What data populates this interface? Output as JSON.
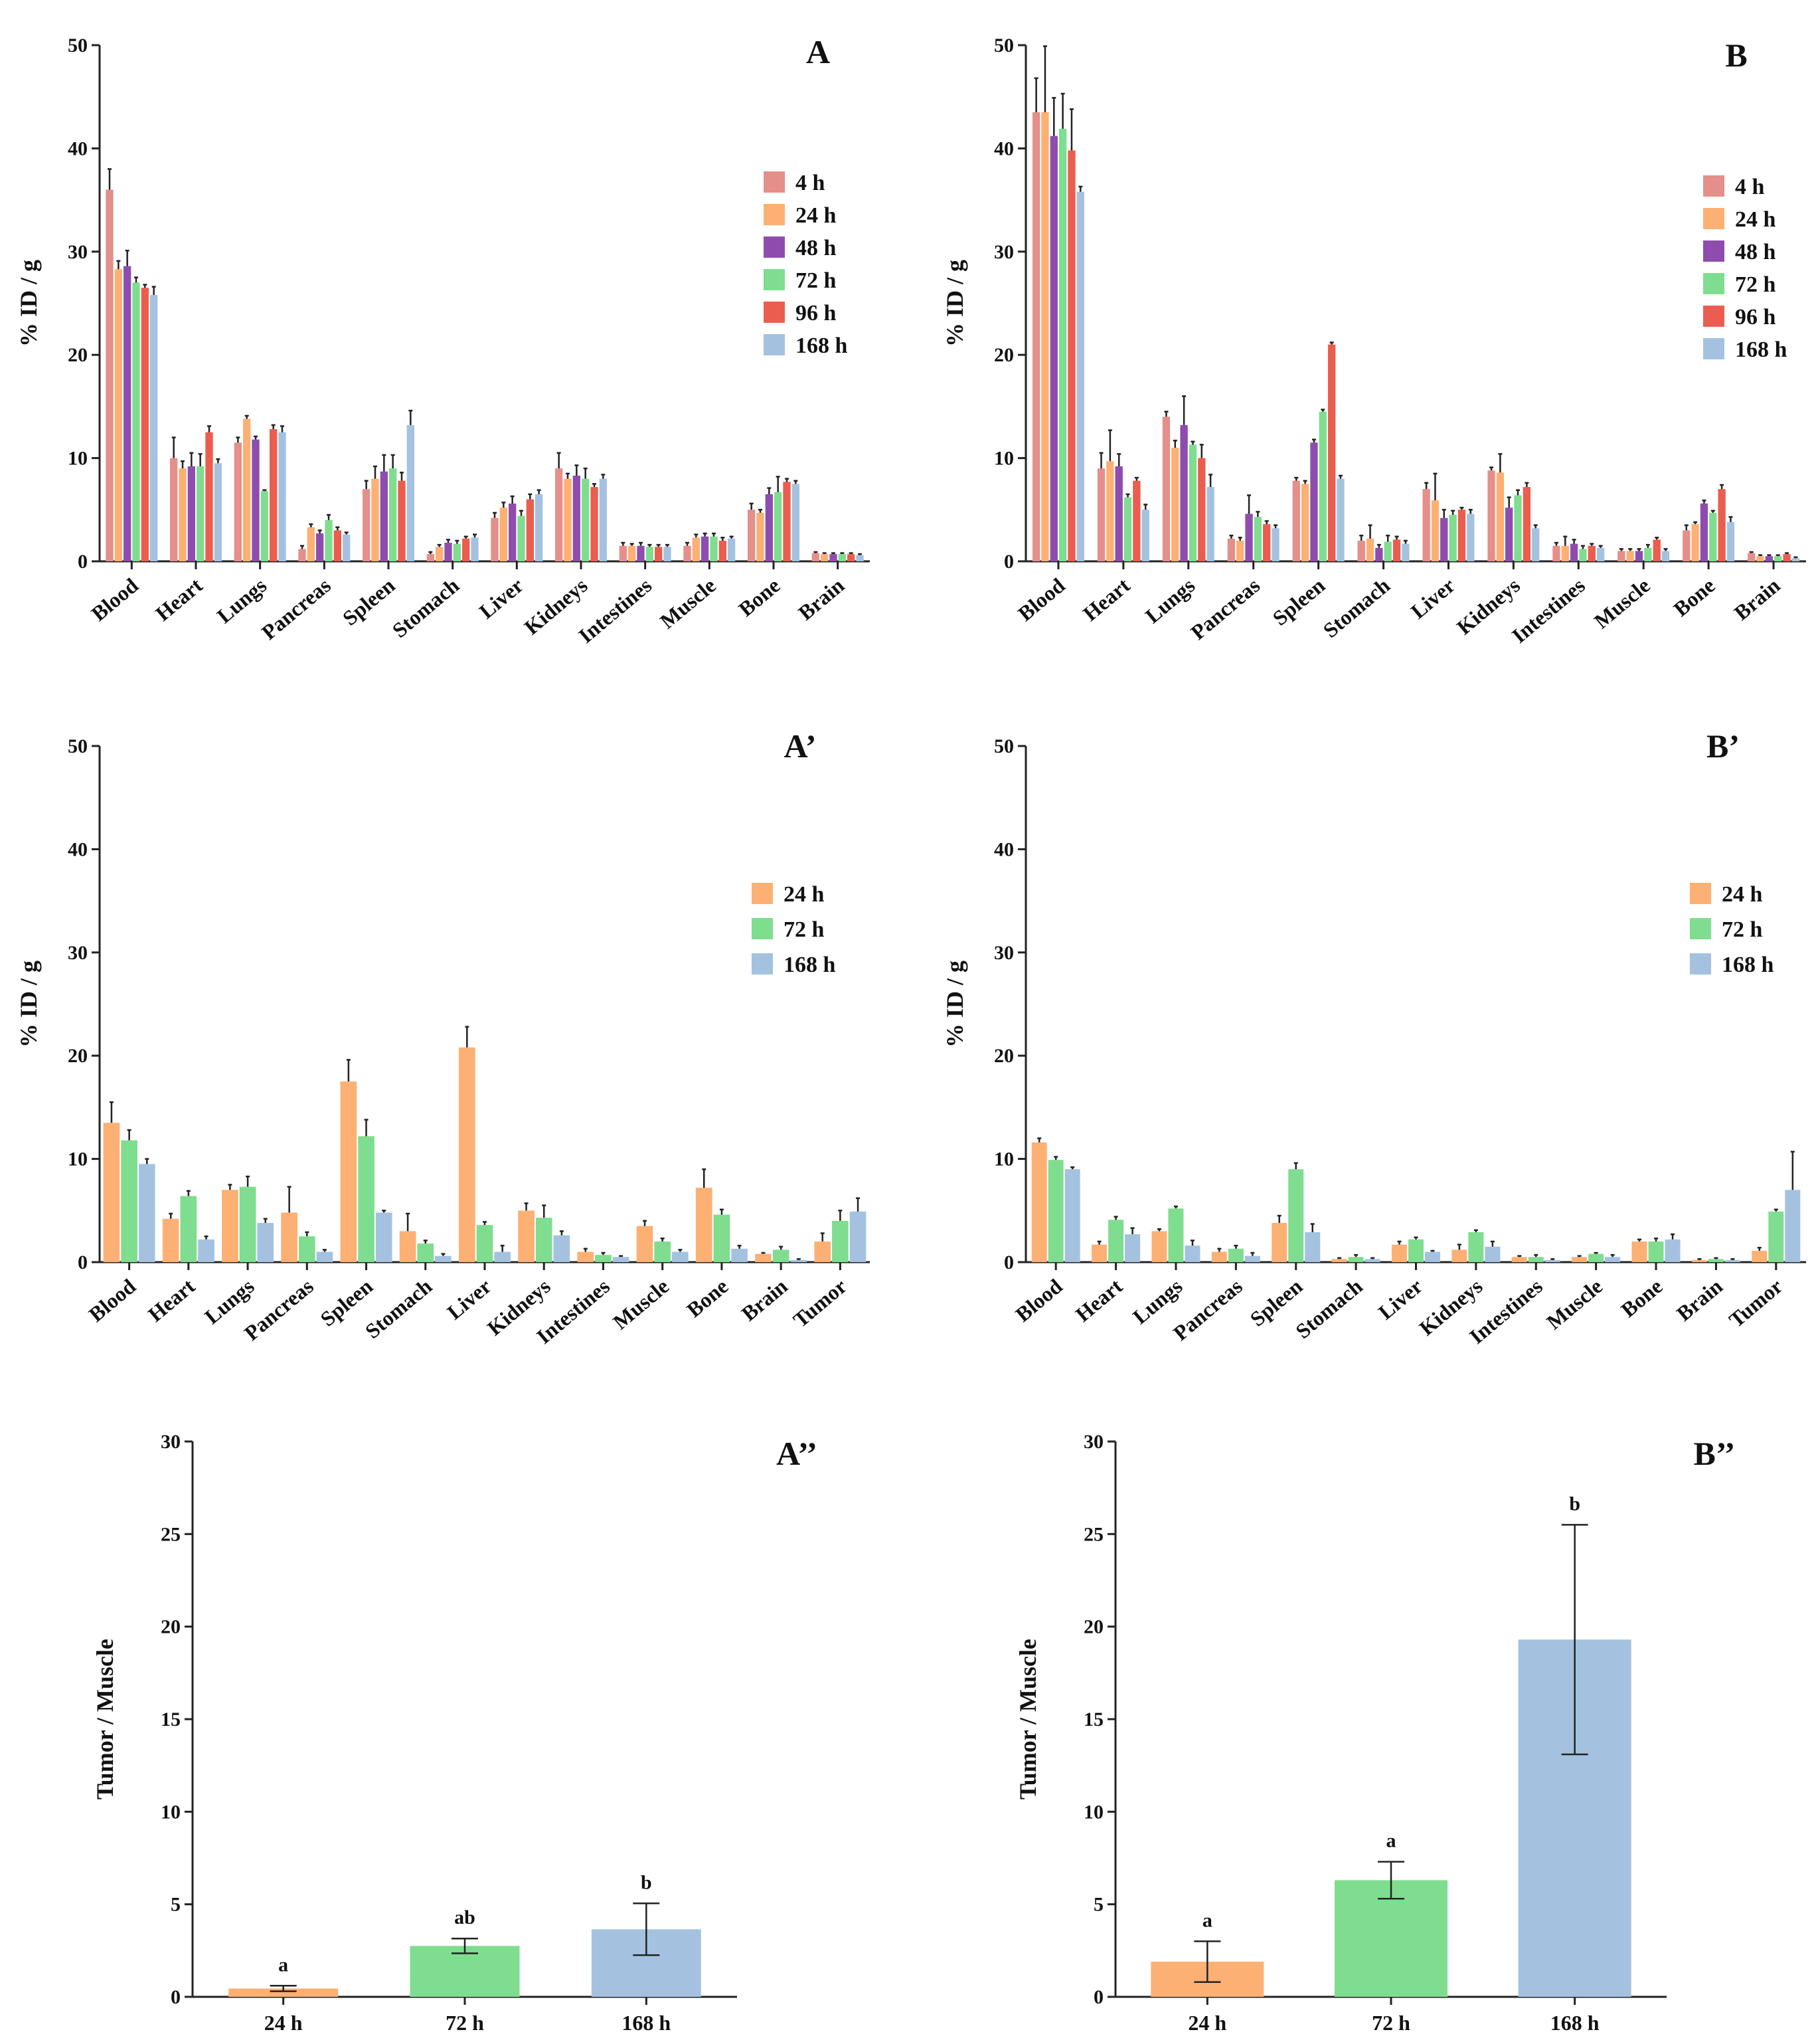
{
  "figure": {
    "colors": {
      "4 h": "#E58F8A",
      "24 h": "#FDB073",
      "48 h": "#8E4DAE",
      "72 h": "#7FDD8F",
      "96 h": "#EB5D4E",
      "168 h": "#A4C2E0"
    }
  },
  "chart_data": [
    {
      "id": "A",
      "label": "A",
      "type": "bar",
      "ylabel": "% ID / g",
      "ylim": [
        0,
        50
      ],
      "yticks": [
        "0",
        "10",
        "20",
        "30",
        "40",
        "50"
      ],
      "categories": [
        "Blood",
        "Heart",
        "Lungs",
        "Pancreas",
        "Spleen",
        "Stomach",
        "Liver",
        "Kidneys",
        "Intestines",
        "Muscle",
        "Bone",
        "Brain"
      ],
      "legend": [
        "4 h",
        "24 h",
        "48 h",
        "72 h",
        "96 h",
        "168 h"
      ],
      "series": [
        {
          "name": "4 h",
          "values": [
            36.0,
            10.0,
            11.5,
            1.2,
            7.0,
            0.7,
            4.2,
            9.0,
            1.5,
            1.5,
            5.0,
            0.8
          ],
          "errors": [
            2.0,
            2.0,
            0.5,
            0.3,
            0.8,
            0.2,
            0.5,
            1.5,
            0.3,
            0.3,
            0.6,
            0.1
          ]
        },
        {
          "name": "24 h",
          "values": [
            28.3,
            9.0,
            13.8,
            3.3,
            8.0,
            1.4,
            5.2,
            8.0,
            1.5,
            2.3,
            4.7,
            0.7
          ],
          "errors": [
            0.8,
            0.7,
            0.3,
            0.3,
            1.2,
            0.2,
            0.5,
            0.5,
            0.2,
            0.3,
            0.3,
            0.1
          ]
        },
        {
          "name": "48 h",
          "values": [
            28.6,
            9.2,
            11.8,
            2.7,
            8.7,
            1.8,
            5.6,
            8.3,
            1.5,
            2.4,
            6.5,
            0.7
          ],
          "errors": [
            1.5,
            1.3,
            0.3,
            0.3,
            1.6,
            0.3,
            0.7,
            1.0,
            0.3,
            0.3,
            0.6,
            0.1
          ]
        },
        {
          "name": "72 h",
          "values": [
            27.0,
            9.2,
            6.8,
            4.0,
            9.0,
            1.7,
            4.4,
            8.0,
            1.4,
            2.4,
            6.7,
            0.7
          ],
          "errors": [
            0.5,
            1.2,
            0.1,
            0.5,
            1.3,
            0.3,
            0.5,
            1.0,
            0.2,
            0.3,
            1.5,
            0.1
          ]
        },
        {
          "name": "96 h",
          "values": [
            26.5,
            12.5,
            12.8,
            3.0,
            7.8,
            2.2,
            6.0,
            7.2,
            1.4,
            2.0,
            7.7,
            0.7
          ],
          "errors": [
            0.3,
            0.6,
            0.4,
            0.3,
            0.8,
            0.2,
            0.5,
            0.3,
            0.2,
            0.3,
            0.3,
            0.1
          ]
        },
        {
          "name": "168 h",
          "values": [
            25.8,
            9.5,
            12.5,
            2.6,
            13.2,
            2.3,
            6.5,
            8.0,
            1.4,
            2.2,
            7.5,
            0.6
          ],
          "errors": [
            0.8,
            0.4,
            0.6,
            0.2,
            1.4,
            0.3,
            0.4,
            0.4,
            0.2,
            0.2,
            0.3,
            0.1
          ]
        }
      ]
    },
    {
      "id": "B",
      "label": "B",
      "type": "bar",
      "ylabel": "% ID / g",
      "ylim": [
        0,
        50
      ],
      "yticks": [
        "0",
        "10",
        "20",
        "30",
        "40",
        "50"
      ],
      "categories": [
        "Blood",
        "Heart",
        "Lungs",
        "Pancreas",
        "Spleen",
        "Stomach",
        "Liver",
        "Kidneys",
        "Intestines",
        "Muscle",
        "Bone",
        "Brain"
      ],
      "legend": [
        "4 h",
        "24 h",
        "48 h",
        "72 h",
        "96 h",
        "168 h"
      ],
      "series": [
        {
          "name": "4 h",
          "values": [
            43.5,
            9.0,
            14.0,
            2.2,
            7.8,
            2.0,
            7.0,
            8.8,
            1.5,
            1.0,
            3.0,
            0.8
          ],
          "errors": [
            3.3,
            1.5,
            0.5,
            0.3,
            0.3,
            0.5,
            0.6,
            0.3,
            0.3,
            0.2,
            0.5,
            0.1
          ]
        },
        {
          "name": "24 h",
          "values": [
            43.5,
            9.7,
            11.0,
            2.0,
            7.5,
            2.2,
            5.9,
            8.6,
            1.5,
            1.0,
            3.6,
            0.5
          ],
          "errors": [
            6.4,
            3.0,
            0.7,
            0.3,
            0.3,
            1.3,
            2.6,
            1.8,
            0.9,
            0.2,
            0.2,
            0.1
          ]
        },
        {
          "name": "48 h",
          "values": [
            41.2,
            9.2,
            13.2,
            4.6,
            11.5,
            1.3,
            4.2,
            5.2,
            1.7,
            1.0,
            5.6,
            0.5
          ],
          "errors": [
            3.7,
            1.2,
            2.8,
            1.8,
            0.3,
            0.3,
            0.8,
            1.0,
            0.4,
            0.2,
            0.3,
            0.1
          ]
        },
        {
          "name": "72 h",
          "values": [
            41.9,
            6.2,
            11.3,
            4.3,
            14.5,
            1.9,
            4.5,
            6.4,
            1.2,
            1.3,
            4.7,
            0.5
          ],
          "errors": [
            3.4,
            0.3,
            0.3,
            0.5,
            0.2,
            0.6,
            0.4,
            0.5,
            0.3,
            0.3,
            0.2,
            0.1
          ]
        },
        {
          "name": "96 h",
          "values": [
            39.8,
            7.8,
            10.0,
            3.6,
            21.0,
            2.1,
            5.0,
            7.2,
            1.5,
            2.1,
            7.0,
            0.7
          ],
          "errors": [
            4.0,
            0.3,
            1.3,
            0.3,
            0.2,
            0.3,
            0.2,
            0.4,
            0.2,
            0.2,
            0.4,
            0.1
          ]
        },
        {
          "name": "168 h",
          "values": [
            35.8,
            5.0,
            7.2,
            3.2,
            8.0,
            1.7,
            4.6,
            3.2,
            1.3,
            1.0,
            3.8,
            0.3
          ],
          "errors": [
            0.5,
            0.5,
            1.2,
            0.3,
            0.3,
            0.3,
            0.4,
            0.3,
            0.2,
            0.2,
            0.5,
            0.1
          ]
        }
      ]
    },
    {
      "id": "A1",
      "label": "A’",
      "type": "bar",
      "ylabel": "% ID / g",
      "ylim": [
        0,
        50
      ],
      "yticks": [
        "0",
        "10",
        "20",
        "30",
        "40",
        "50"
      ],
      "categories": [
        "Blood",
        "Heart",
        "Lungs",
        "Pancreas",
        "Spleen",
        "Stomach",
        "Liver",
        "Kidneys",
        "Intestines",
        "Muscle",
        "Bone",
        "Brain",
        "Tumor"
      ],
      "legend": [
        "24 h",
        "72 h",
        "168 h"
      ],
      "series": [
        {
          "name": "24 h",
          "values": [
            13.5,
            4.2,
            7.0,
            4.8,
            17.5,
            3.0,
            20.8,
            5.0,
            1.0,
            3.5,
            7.2,
            0.8,
            2.0
          ],
          "errors": [
            2.0,
            0.5,
            0.5,
            2.5,
            2.1,
            1.7,
            2.0,
            0.7,
            0.3,
            0.5,
            1.8,
            0.1,
            0.8
          ]
        },
        {
          "name": "72 h",
          "values": [
            11.8,
            6.4,
            7.3,
            2.5,
            12.2,
            1.8,
            3.6,
            4.3,
            0.7,
            2.0,
            4.6,
            1.2,
            4.0
          ],
          "errors": [
            1.0,
            0.5,
            1.0,
            0.4,
            1.6,
            0.3,
            0.3,
            1.2,
            0.2,
            0.3,
            0.5,
            0.3,
            1.0
          ]
        },
        {
          "name": "168 h",
          "values": [
            9.5,
            2.2,
            3.8,
            1.0,
            4.8,
            0.6,
            1.0,
            2.6,
            0.5,
            1.0,
            1.3,
            0.2,
            4.9
          ],
          "errors": [
            0.5,
            0.3,
            0.4,
            0.2,
            0.2,
            0.2,
            0.6,
            0.4,
            0.1,
            0.2,
            0.3,
            0.1,
            1.3
          ]
        }
      ]
    },
    {
      "id": "B1",
      "label": "B’",
      "type": "bar",
      "ylabel": "% ID / g",
      "ylim": [
        0,
        50
      ],
      "yticks": [
        "0",
        "10",
        "20",
        "30",
        "40",
        "50"
      ],
      "categories": [
        "Blood",
        "Heart",
        "Lungs",
        "Pancreas",
        "Spleen",
        "Stomach",
        "Liver",
        "Kidneys",
        "Intestines",
        "Muscle",
        "Bone",
        "Brain",
        "Tumor"
      ],
      "legend": [
        "24 h",
        "72 h",
        "168 h"
      ],
      "series": [
        {
          "name": "24 h",
          "values": [
            11.6,
            1.7,
            3.0,
            1.0,
            3.8,
            0.3,
            1.7,
            1.2,
            0.5,
            0.5,
            2.0,
            0.2,
            1.1
          ],
          "errors": [
            0.4,
            0.3,
            0.2,
            0.3,
            0.7,
            0.1,
            0.3,
            0.5,
            0.1,
            0.1,
            0.2,
            0.1,
            0.3
          ]
        },
        {
          "name": "72 h",
          "values": [
            9.9,
            4.1,
            5.2,
            1.3,
            9.0,
            0.5,
            2.2,
            2.9,
            0.5,
            0.8,
            2.0,
            0.3,
            4.9
          ],
          "errors": [
            0.3,
            0.3,
            0.2,
            0.3,
            0.6,
            0.2,
            0.2,
            0.2,
            0.2,
            0.1,
            0.3,
            0.1,
            0.2
          ]
        },
        {
          "name": "168 h",
          "values": [
            9.0,
            2.7,
            1.6,
            0.6,
            2.9,
            0.3,
            1.0,
            1.5,
            0.2,
            0.5,
            2.2,
            0.2,
            7.0
          ],
          "errors": [
            0.2,
            0.6,
            0.5,
            0.3,
            0.8,
            0.1,
            0.1,
            0.5,
            0.1,
            0.2,
            0.5,
            0.1,
            3.7
          ]
        }
      ]
    },
    {
      "id": "A2",
      "label": "A’’",
      "type": "bar",
      "ylabel": "Tumor / Muscle",
      "ylim": [
        0,
        30
      ],
      "yticks": [
        "0",
        "5",
        "10",
        "15",
        "20",
        "25",
        "30"
      ],
      "categories": [
        "24 h",
        "72 h",
        "168 h"
      ],
      "values": [
        0.45,
        2.75,
        3.65
      ],
      "errors": [
        0.15,
        0.4,
        1.4
      ],
      "significance": [
        "a",
        "ab",
        "b"
      ]
    },
    {
      "id": "B2",
      "label": "B’’",
      "type": "bar",
      "ylabel": "Tumor / Muscle",
      "ylim": [
        0,
        30
      ],
      "yticks": [
        "0",
        "5",
        "10",
        "15",
        "20",
        "25",
        "30"
      ],
      "categories": [
        "24 h",
        "72 h",
        "168 h"
      ],
      "values": [
        1.9,
        6.3,
        19.3
      ],
      "errors": [
        1.1,
        1.0,
        6.2
      ],
      "significance": [
        "a",
        "a",
        "b"
      ]
    }
  ]
}
